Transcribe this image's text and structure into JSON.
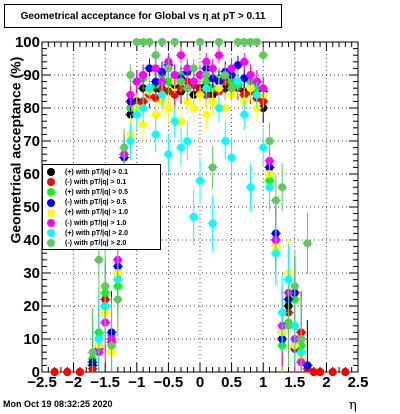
{
  "title": "Geometrical acceptance for Global vs  η at pT > 0.11",
  "timestamp": "Mon Oct 19 08:32:25 2020",
  "chart_data": {
    "type": "scatter",
    "xlabel": "η",
    "ylabel": "Geometrical acceptance (%)",
    "xlim": [
      -2.5,
      2.5
    ],
    "ylim": [
      0,
      100
    ],
    "x_ticks": [
      "−2.5",
      "−2",
      "−1.5",
      "−1",
      "−0.5",
      "0",
      "0.5",
      "1",
      "1.5",
      "2",
      "2.5"
    ],
    "y_ticks": [
      "0",
      "10",
      "20",
      "30",
      "40",
      "50",
      "60",
      "70",
      "80",
      "90",
      "100"
    ],
    "grid": true,
    "legend_position": "middle-left",
    "series": [
      {
        "name": "(+) with pT/|q| > 0.1",
        "color": "#000000",
        "x": [
          -2.3,
          -2.1,
          -1.9,
          -1.7,
          -1.6,
          -1.5,
          -1.4,
          -1.3,
          -1.2,
          -1.1,
          -1.0,
          -0.9,
          -0.8,
          -0.7,
          -0.6,
          -0.5,
          -0.4,
          -0.3,
          -0.2,
          -0.1,
          0.0,
          0.1,
          0.2,
          0.3,
          0.4,
          0.5,
          0.6,
          0.7,
          0.8,
          0.9,
          1.0,
          1.1,
          1.2,
          1.3,
          1.4,
          1.5,
          1.6,
          1.7,
          1.8,
          1.9,
          2.1,
          2.3
        ],
        "y": [
          0,
          0,
          0,
          2,
          8,
          20,
          10,
          30,
          60,
          78,
          82,
          86,
          84,
          86,
          85,
          88,
          87,
          85,
          86,
          84,
          86,
          87,
          84,
          88,
          86,
          88,
          87,
          85,
          86,
          84,
          80,
          60,
          40,
          12,
          20,
          8,
          10,
          2,
          0,
          0,
          0,
          0
        ]
      },
      {
        "name": "(-) with pT/|q| > 0.1",
        "color": "#ff0000",
        "x": [
          -2.3,
          -2.1,
          -1.9,
          -1.7,
          -1.6,
          -1.5,
          -1.4,
          -1.3,
          -1.2,
          -1.1,
          -1.0,
          -0.9,
          -0.8,
          -0.7,
          -0.6,
          -0.5,
          -0.4,
          -0.3,
          -0.2,
          -0.1,
          0.0,
          0.1,
          0.2,
          0.3,
          0.4,
          0.5,
          0.6,
          0.7,
          0.8,
          0.9,
          1.0,
          1.1,
          1.2,
          1.3,
          1.4,
          1.5,
          1.6,
          1.7,
          1.8,
          1.9,
          2.1,
          2.3
        ],
        "y": [
          0,
          0,
          0,
          1,
          7,
          22,
          9,
          28,
          58,
          80,
          81,
          82,
          84,
          83,
          86,
          85,
          84,
          86,
          88,
          87,
          85,
          84,
          86,
          85,
          88,
          87,
          86,
          84,
          85,
          83,
          82,
          62,
          38,
          10,
          18,
          7,
          12,
          1,
          0,
          0,
          0,
          0
        ]
      },
      {
        "name": "(+) with pT/|q| > 0.5",
        "color": "#00ff00",
        "x": [
          -1.7,
          -1.6,
          -1.5,
          -1.4,
          -1.3,
          -1.2,
          -1.1,
          -1.0,
          -0.9,
          -0.8,
          -0.7,
          -0.6,
          -0.5,
          -0.4,
          -0.3,
          -0.2,
          -0.1,
          0.0,
          0.1,
          0.2,
          0.3,
          0.4,
          0.5,
          0.6,
          0.7,
          0.8,
          0.9,
          1.0,
          1.1,
          1.2,
          1.3,
          1.4,
          1.5,
          1.6,
          1.7
        ],
        "y": [
          4,
          12,
          24,
          11,
          26,
          55,
          80,
          88,
          89,
          86,
          87,
          90,
          88,
          89,
          90,
          86,
          88,
          90,
          88,
          86,
          89,
          90,
          88,
          87,
          89,
          88,
          86,
          84,
          58,
          36,
          8,
          15,
          22,
          8,
          2
        ]
      },
      {
        "name": "(-) with pT/|q| > 0.5",
        "color": "#0000ff",
        "x": [
          -1.7,
          -1.6,
          -1.5,
          -1.4,
          -1.3,
          -1.2,
          -1.1,
          -1.0,
          -0.9,
          -0.8,
          -0.7,
          -0.6,
          -0.5,
          -0.4,
          -0.3,
          -0.2,
          -0.1,
          0.0,
          0.1,
          0.2,
          0.3,
          0.4,
          0.5,
          0.6,
          0.7,
          0.8,
          0.9,
          1.0,
          1.1,
          1.2,
          1.3,
          1.4,
          1.5,
          1.6,
          1.7
        ],
        "y": [
          3,
          10,
          20,
          12,
          32,
          65,
          82,
          88,
          90,
          92,
          88,
          91,
          93,
          90,
          89,
          91,
          88,
          90,
          92,
          89,
          88,
          91,
          90,
          93,
          89,
          90,
          88,
          85,
          62,
          42,
          10,
          22,
          24,
          6,
          2
        ]
      },
      {
        "name": "(+) with pT/|q| > 1.0",
        "color": "#ffff00",
        "x": [
          -1.6,
          -1.5,
          -1.4,
          -1.3,
          -1.2,
          -1.1,
          -1.0,
          -0.9,
          -0.8,
          -0.7,
          -0.6,
          -0.5,
          -0.4,
          -0.3,
          -0.2,
          -0.1,
          0.0,
          0.1,
          0.2,
          0.3,
          0.4,
          0.5,
          0.6,
          0.7,
          0.8,
          0.9,
          1.0,
          1.1,
          1.2,
          1.3,
          1.4,
          1.5,
          1.6
        ],
        "y": [
          8,
          18,
          6,
          30,
          62,
          72,
          80,
          75,
          85,
          78,
          82,
          80,
          88,
          76,
          82,
          80,
          84,
          78,
          82,
          86,
          80,
          84,
          88,
          82,
          86,
          80,
          84,
          60,
          38,
          12,
          30,
          8,
          4
        ]
      },
      {
        "name": "(-) with pT/|q| > 1.0",
        "color": "#ff00ff",
        "x": [
          -1.6,
          -1.5,
          -1.4,
          -1.3,
          -1.2,
          -1.1,
          -1.0,
          -0.9,
          -0.8,
          -0.7,
          -0.6,
          -0.5,
          -0.4,
          -0.3,
          -0.2,
          -0.1,
          0.0,
          0.1,
          0.2,
          0.3,
          0.4,
          0.5,
          0.6,
          0.7,
          0.8,
          0.9,
          1.0,
          1.1,
          1.2,
          1.3,
          1.4,
          1.5,
          1.6
        ],
        "y": [
          6,
          15,
          10,
          34,
          66,
          84,
          88,
          90,
          86,
          92,
          88,
          94,
          90,
          96,
          92,
          88,
          90,
          94,
          92,
          96,
          90,
          92,
          88,
          94,
          90,
          88,
          86,
          64,
          40,
          14,
          24,
          10,
          3
        ]
      },
      {
        "name": "(+) with pT/|q| > 2.0",
        "color": "#00ffff",
        "x": [
          -1.6,
          -1.5,
          -1.4,
          -1.3,
          -1.2,
          -1.1,
          -1.0,
          -0.9,
          -0.8,
          -0.7,
          -0.6,
          -0.5,
          -0.4,
          -0.3,
          -0.2,
          -0.1,
          0.0,
          0.1,
          0.2,
          0.3,
          0.4,
          0.5,
          0.6,
          0.7,
          0.8,
          0.9,
          1.0,
          1.1,
          1.2,
          1.3,
          1.4,
          1.5,
          1.6
        ],
        "y": [
          10,
          20,
          8,
          28,
          60,
          70,
          78,
          80,
          86,
          72,
          84,
          66,
          76,
          68,
          70,
          47,
          58,
          86,
          45,
          80,
          70,
          65,
          88,
          78,
          56,
          84,
          68,
          56,
          36,
          18,
          28,
          14,
          6
        ]
      },
      {
        "name": "(-) with pT/|q| > 2.0",
        "color": "#5fc95f",
        "x": [
          -1.7,
          -1.6,
          -1.5,
          -1.4,
          -1.3,
          -1.2,
          -1.1,
          -1.0,
          -0.9,
          -0.8,
          -0.7,
          -0.6,
          -0.5,
          -0.4,
          -0.3,
          -0.2,
          -0.1,
          0.0,
          0.1,
          0.2,
          0.3,
          0.4,
          0.5,
          0.6,
          0.7,
          0.8,
          0.9,
          1.0,
          1.1,
          1.2,
          1.3,
          1.4,
          1.5,
          1.6,
          1.7
        ],
        "y": [
          6,
          34,
          26,
          8,
          22,
          68,
          90,
          100,
          100,
          100,
          96,
          100,
          92,
          100,
          88,
          86,
          92,
          100,
          90,
          62,
          100,
          90,
          86,
          100,
          100,
          100,
          100,
          96,
          70,
          52,
          56,
          14,
          26,
          10,
          39
        ]
      }
    ]
  }
}
